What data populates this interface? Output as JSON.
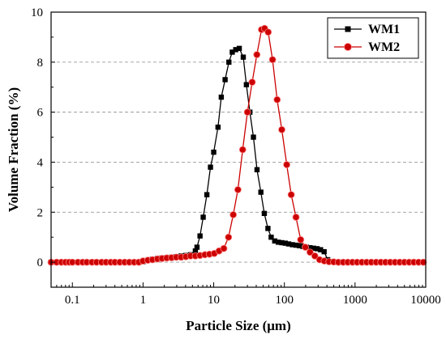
{
  "chart_data": {
    "type": "line",
    "xlabel": "Particle Size (μm)",
    "ylabel": "Volume  Fraction (%)",
    "x_scale": "log",
    "xlim": [
      0.05,
      10000
    ],
    "ylim": [
      -1,
      10
    ],
    "x_ticks": [
      0.1,
      1,
      10,
      100,
      1000,
      10000
    ],
    "x_tick_labels": [
      "0.1",
      "1",
      "10",
      "100",
      "1000",
      "10000"
    ],
    "y_ticks": [
      0,
      2,
      4,
      6,
      8,
      10
    ],
    "y_tick_labels": [
      "0",
      "2",
      "4",
      "6",
      "8",
      "10"
    ],
    "grid": "horizontal dashed",
    "legend_position": "top-right",
    "series": [
      {
        "name": "WM1",
        "color": "#000000",
        "marker": "square",
        "points": [
          [
            0.05,
            0
          ],
          [
            0.06,
            0
          ],
          [
            0.07,
            0
          ],
          [
            0.08,
            0
          ],
          [
            0.09,
            0
          ],
          [
            0.1,
            0
          ],
          [
            0.12,
            0
          ],
          [
            0.14,
            0
          ],
          [
            0.16,
            0
          ],
          [
            0.19,
            0
          ],
          [
            0.22,
            0
          ],
          [
            0.26,
            0
          ],
          [
            0.3,
            0
          ],
          [
            0.35,
            0
          ],
          [
            0.4,
            0
          ],
          [
            0.47,
            0
          ],
          [
            0.55,
            0
          ],
          [
            0.64,
            0
          ],
          [
            0.75,
            0
          ],
          [
            0.87,
            0
          ],
          [
            1.0,
            0.02
          ],
          [
            1.17,
            0.08
          ],
          [
            1.36,
            0.12
          ],
          [
            1.6,
            0.15
          ],
          [
            1.86,
            0.17
          ],
          [
            2.17,
            0.18
          ],
          [
            2.54,
            0.2
          ],
          [
            2.96,
            0.22
          ],
          [
            3.46,
            0.25
          ],
          [
            4.04,
            0.27
          ],
          [
            4.71,
            0.3
          ],
          [
            5.5,
            0.45
          ],
          [
            5.8,
            0.6
          ],
          [
            6.4,
            1.05
          ],
          [
            7.1,
            1.8
          ],
          [
            8.0,
            2.7
          ],
          [
            9.0,
            3.8
          ],
          [
            10.0,
            4.4
          ],
          [
            11.5,
            5.4
          ],
          [
            12.8,
            6.6
          ],
          [
            14.5,
            7.3
          ],
          [
            16.4,
            8.0
          ],
          [
            18.3,
            8.4
          ],
          [
            20.5,
            8.5
          ],
          [
            23.0,
            8.55
          ],
          [
            26.2,
            8.2
          ],
          [
            29.0,
            7.1
          ],
          [
            32.5,
            6.0
          ],
          [
            36.5,
            5.0
          ],
          [
            41.0,
            3.7
          ],
          [
            46.5,
            2.8
          ],
          [
            52.0,
            1.95
          ],
          [
            58.5,
            1.35
          ],
          [
            65.0,
            1.0
          ],
          [
            73.0,
            0.85
          ],
          [
            82.0,
            0.8
          ],
          [
            92.0,
            0.78
          ],
          [
            103,
            0.76
          ],
          [
            115,
            0.73
          ],
          [
            130,
            0.7
          ],
          [
            146,
            0.68
          ],
          [
            163,
            0.66
          ],
          [
            183,
            0.63
          ],
          [
            205,
            0.6
          ],
          [
            230,
            0.58
          ],
          [
            258,
            0.56
          ],
          [
            290,
            0.54
          ],
          [
            325,
            0.5
          ],
          [
            365,
            0.42
          ],
          [
            410,
            0.1
          ],
          [
            460,
            0.03
          ],
          [
            520,
            0.01
          ],
          [
            600,
            0
          ],
          [
            700,
            0
          ],
          [
            800,
            0
          ]
        ]
      },
      {
        "name": "WM2",
        "color": "#cc0000",
        "marker": "circle",
        "points": [
          [
            0.05,
            0
          ],
          [
            0.06,
            0
          ],
          [
            0.07,
            0
          ],
          [
            0.08,
            0
          ],
          [
            0.09,
            0
          ],
          [
            0.1,
            0
          ],
          [
            0.12,
            0
          ],
          [
            0.14,
            0
          ],
          [
            0.16,
            0
          ],
          [
            0.19,
            0
          ],
          [
            0.22,
            0
          ],
          [
            0.26,
            0
          ],
          [
            0.3,
            0
          ],
          [
            0.35,
            0
          ],
          [
            0.4,
            0
          ],
          [
            0.47,
            0
          ],
          [
            0.55,
            0
          ],
          [
            0.64,
            0
          ],
          [
            0.75,
            0
          ],
          [
            0.87,
            0
          ],
          [
            1.0,
            0.05
          ],
          [
            1.17,
            0.08
          ],
          [
            1.36,
            0.1
          ],
          [
            1.6,
            0.13
          ],
          [
            1.86,
            0.15
          ],
          [
            2.17,
            0.17
          ],
          [
            2.54,
            0.18
          ],
          [
            2.96,
            0.2
          ],
          [
            3.46,
            0.2
          ],
          [
            4.04,
            0.22
          ],
          [
            4.71,
            0.25
          ],
          [
            5.5,
            0.25
          ],
          [
            6.4,
            0.27
          ],
          [
            7.5,
            0.3
          ],
          [
            8.7,
            0.32
          ],
          [
            10.2,
            0.35
          ],
          [
            11.9,
            0.45
          ],
          [
            13.9,
            0.55
          ],
          [
            16.2,
            1.0
          ],
          [
            18.9,
            1.9
          ],
          [
            22.0,
            2.9
          ],
          [
            25.7,
            4.5
          ],
          [
            30.0,
            6.0
          ],
          [
            35.0,
            7.2
          ],
          [
            40.8,
            8.3
          ],
          [
            47.5,
            9.3
          ],
          [
            52.5,
            9.35
          ],
          [
            59.0,
            9.2
          ],
          [
            68.0,
            8.1
          ],
          [
            79.0,
            6.5
          ],
          [
            92.0,
            5.3
          ],
          [
            108,
            3.9
          ],
          [
            125,
            2.7
          ],
          [
            146,
            1.8
          ],
          [
            170,
            0.9
          ],
          [
            198,
            0.6
          ],
          [
            231,
            0.4
          ],
          [
            270,
            0.25
          ],
          [
            315,
            0.1
          ],
          [
            367,
            0.05
          ],
          [
            428,
            0.02
          ],
          [
            500,
            0.01
          ],
          [
            580,
            0
          ],
          [
            680,
            0
          ],
          [
            790,
            0
          ],
          [
            920,
            0
          ],
          [
            1070,
            0
          ],
          [
            1250,
            0
          ],
          [
            1460,
            0
          ],
          [
            1700,
            0
          ],
          [
            1990,
            0
          ],
          [
            2320,
            0
          ],
          [
            2700,
            0
          ],
          [
            3150,
            0
          ],
          [
            3680,
            0
          ],
          [
            4290,
            0
          ],
          [
            5000,
            0
          ],
          [
            5830,
            0
          ],
          [
            6800,
            0
          ],
          [
            7930,
            0
          ],
          [
            9250,
            0
          ]
        ]
      }
    ]
  }
}
